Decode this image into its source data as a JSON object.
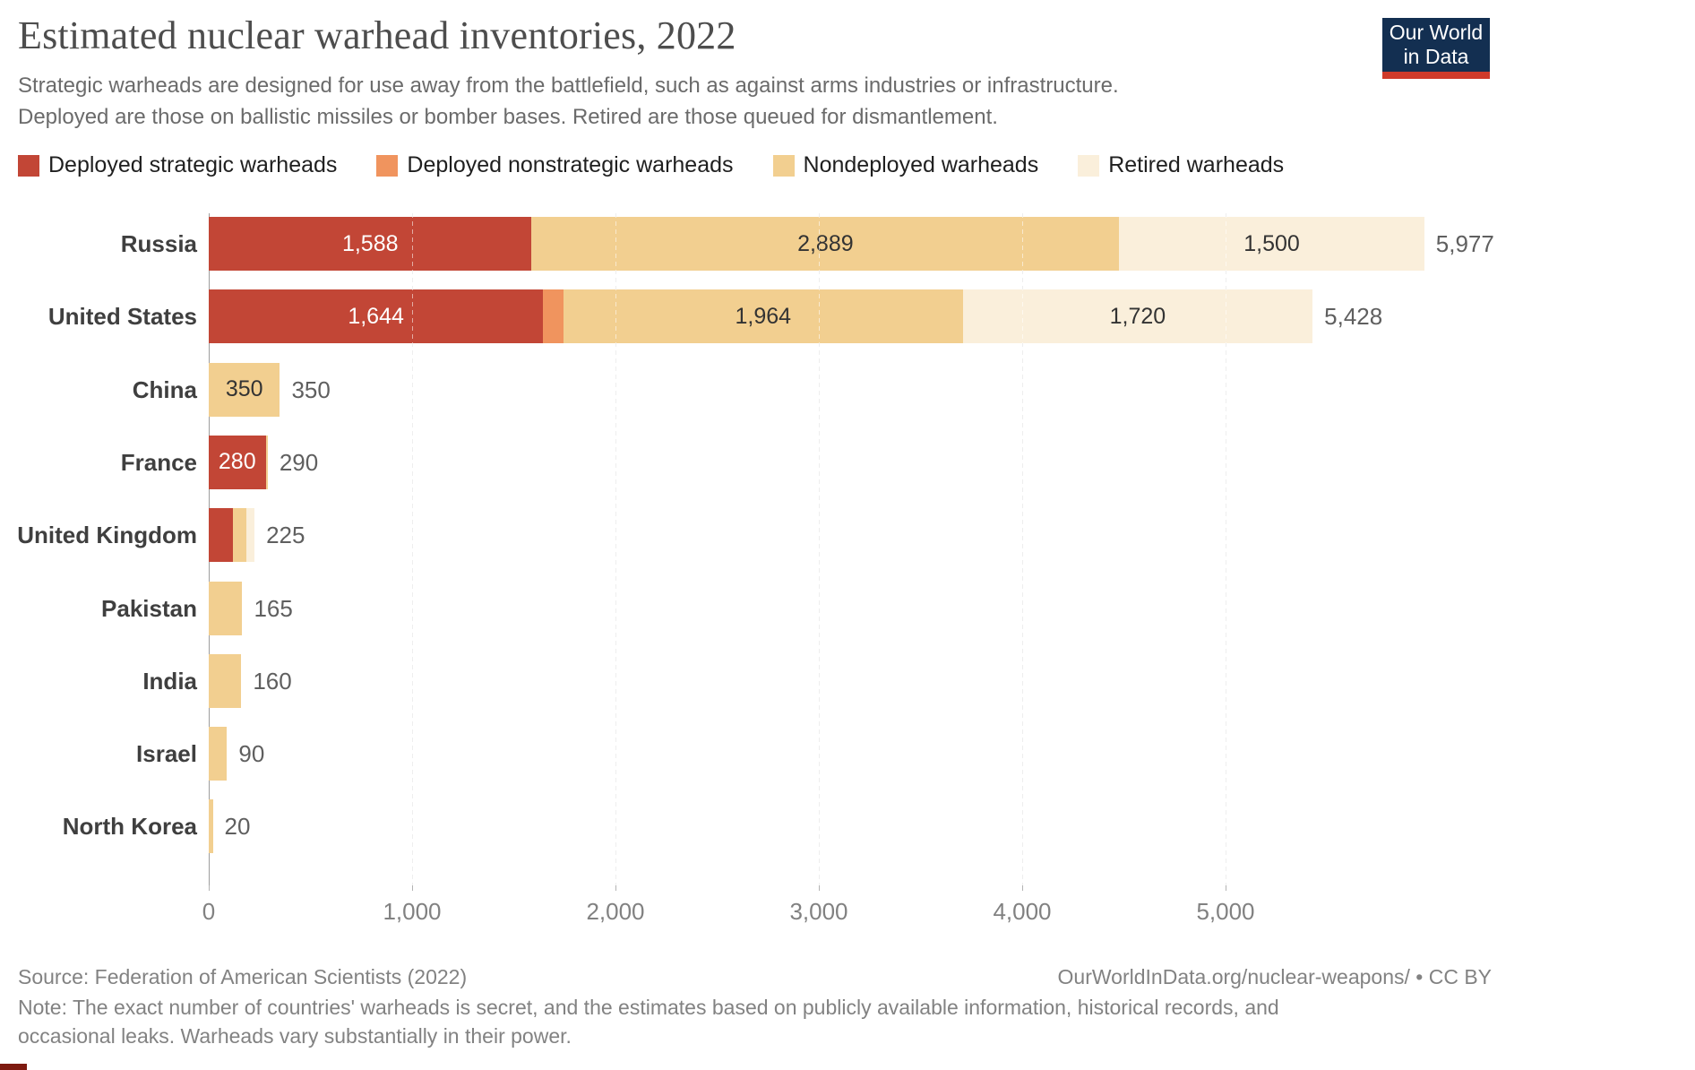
{
  "header": {
    "title": "Estimated nuclear warhead inventories, 2022",
    "subtitle_line1": "Strategic warheads are designed for use away from the battlefield, such as against arms industries or infrastructure.",
    "subtitle_line2": "Deployed are those on ballistic missiles or bomber bases. Retired are those queued for dismantlement.",
    "logo": {
      "line1": "Our World",
      "line2": "in Data"
    }
  },
  "brand": {
    "logo_bg": "#132f51",
    "logo_strip": "#cf3a2a"
  },
  "legend": [
    {
      "label": "Deployed strategic warheads",
      "color": "#c24636"
    },
    {
      "label": "Deployed nonstrategic warheads",
      "color": "#f0945e"
    },
    {
      "label": "Nondeployed warheads",
      "color": "#f2cf90"
    },
    {
      "label": "Retired warheads",
      "color": "#faefdb"
    }
  ],
  "chart_data": {
    "type": "bar",
    "orientation": "horizontal",
    "stacked": true,
    "title": "Estimated nuclear warhead inventories, 2022",
    "categories": [
      "Russia",
      "United States",
      "China",
      "France",
      "United Kingdom",
      "Pakistan",
      "India",
      "Israel",
      "North Korea"
    ],
    "series": [
      {
        "name": "Deployed strategic warheads",
        "color": "#c24636",
        "values": [
          1588,
          1644,
          0,
          280,
          120,
          0,
          0,
          0,
          0
        ]
      },
      {
        "name": "Deployed nonstrategic warheads",
        "color": "#f0945e",
        "values": [
          0,
          100,
          0,
          0,
          0,
          0,
          0,
          0,
          0
        ]
      },
      {
        "name": "Nondeployed warheads",
        "color": "#f2cf90",
        "values": [
          2889,
          1964,
          350,
          10,
          65,
          165,
          160,
          90,
          20
        ]
      },
      {
        "name": "Retired warheads",
        "color": "#faefdb",
        "values": [
          1500,
          1720,
          0,
          0,
          40,
          0,
          0,
          0,
          0
        ]
      }
    ],
    "totals": [
      5977,
      5428,
      350,
      290,
      225,
      165,
      160,
      90,
      20
    ],
    "total_labels": [
      "5,977",
      "5,428",
      "350",
      "290",
      "225",
      "165",
      "160",
      "90",
      "20"
    ],
    "xlabel": "",
    "ylabel": "",
    "xlim": [
      0,
      6000
    ],
    "x_ticks": [
      0,
      1000,
      2000,
      3000,
      4000,
      5000
    ],
    "x_tick_labels": [
      "0",
      "1,000",
      "2,000",
      "3,000",
      "4,000",
      "5,000"
    ],
    "grid": "vertical-dashed",
    "legend_position": "top"
  },
  "footer": {
    "source": "Source: Federation of American Scientists (2022)",
    "url_line": "OurWorldInData.org/nuclear-weapons/ • CC BY",
    "note_line1": "Note: The exact number of countries' warheads is secret, and the estimates based on publicly available information, historical records, and",
    "note_line2": "occasional leaks. Warheads vary substantially in their power."
  }
}
